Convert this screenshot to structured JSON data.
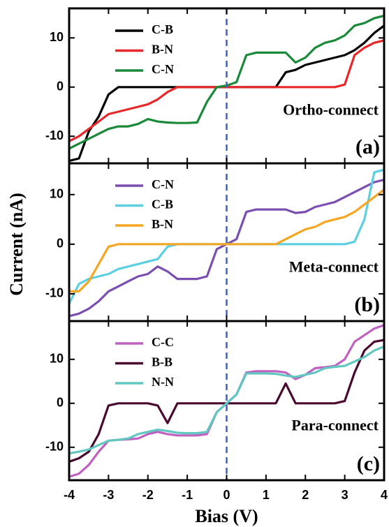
{
  "chart_data": [
    {
      "type": "line",
      "annotation": "Ortho-connect",
      "panel_label": "(a)",
      "legend": "upper left",
      "vline": 0,
      "xlim": [
        -4,
        4
      ],
      "xticks": [
        -4,
        -3,
        -2,
        -1,
        0,
        1,
        2,
        3,
        4
      ],
      "ylim": [
        -15.5,
        16
      ],
      "yticks": [
        -10,
        0,
        10
      ],
      "x": [
        -4,
        -3.75,
        -3.5,
        -3.25,
        -3,
        -2.75,
        -2.5,
        -2.25,
        -2,
        -1.75,
        -1.5,
        -1.25,
        -1,
        -0.75,
        -0.5,
        -0.25,
        0,
        0.25,
        0.5,
        0.75,
        1,
        1.25,
        1.5,
        1.75,
        2,
        2.25,
        2.5,
        2.75,
        3,
        3.25,
        3.5,
        3.75,
        4
      ],
      "series": [
        {
          "name": "C-B",
          "color": "#000000",
          "values": [
            -15,
            -14.5,
            -9,
            -6,
            -1.5,
            0,
            0,
            0,
            0,
            0,
            0,
            0,
            0,
            0,
            0,
            0,
            0,
            0,
            0,
            0,
            0,
            0,
            3,
            3.5,
            4.5,
            5,
            5.5,
            6,
            6.5,
            7.5,
            9,
            11,
            12.5
          ]
        },
        {
          "name": "B-N",
          "color": "#e8272a",
          "values": [
            -11,
            -10,
            -8.5,
            -7,
            -5.5,
            -5,
            -4.5,
            -4,
            -3.5,
            -2.5,
            -1,
            0,
            0,
            0,
            0,
            0,
            0,
            0,
            0,
            0,
            0,
            0,
            0,
            0,
            0,
            0,
            0,
            0,
            0.5,
            6.5,
            8,
            9,
            9.5
          ]
        },
        {
          "name": "C-N",
          "color": "#1a8a3a",
          "values": [
            -12.5,
            -11.5,
            -10.5,
            -9.5,
            -8.5,
            -8,
            -8,
            -7.5,
            -6.5,
            -7,
            -7.2,
            -7.3,
            -7.3,
            -7.2,
            -3,
            0,
            0.3,
            1,
            6.5,
            7,
            7,
            7,
            7,
            5,
            6,
            8,
            9,
            9.5,
            10.5,
            12.5,
            13,
            14,
            14.5
          ]
        }
      ]
    },
    {
      "type": "line",
      "annotation": "Meta-connect",
      "panel_label": "(b)",
      "legend": "upper left",
      "vline": 0,
      "ylabel": "Current (nA)",
      "xlim": [
        -4,
        4
      ],
      "xticks": [
        -4,
        -3,
        -2,
        -1,
        0,
        1,
        2,
        3,
        4
      ],
      "ylim": [
        -15.5,
        16.3
      ],
      "yticks": [
        -10,
        0,
        10
      ],
      "x": [
        -4,
        -3.75,
        -3.5,
        -3.25,
        -3,
        -2.75,
        -2.5,
        -2.25,
        -2,
        -1.75,
        -1.5,
        -1.25,
        -1,
        -0.75,
        -0.5,
        -0.25,
        0,
        0.25,
        0.5,
        0.75,
        1,
        1.25,
        1.5,
        1.75,
        2,
        2.25,
        2.5,
        2.75,
        3,
        3.25,
        3.5,
        3.75,
        4
      ],
      "series": [
        {
          "name": "C-N",
          "color": "#7a4fb0",
          "values": [
            -14.5,
            -14,
            -13,
            -11.5,
            -9.5,
            -8.5,
            -7.5,
            -6.5,
            -6,
            -4.5,
            -5.5,
            -7,
            -7,
            -7,
            -6.5,
            -1,
            0,
            1,
            6.5,
            7,
            7,
            7,
            7,
            6.3,
            6.5,
            7.5,
            8,
            8.5,
            9.5,
            10.5,
            11.5,
            12.5,
            13
          ]
        },
        {
          "name": "C-B",
          "color": "#5ccfe0",
          "values": [
            -12,
            -8,
            -7,
            -6.5,
            -6,
            -5,
            -4.5,
            -4,
            -3.5,
            -3,
            -0.5,
            0,
            0,
            0,
            0,
            0,
            0,
            0,
            0,
            0,
            0,
            0,
            0,
            0,
            0,
            0,
            0,
            0,
            0,
            0.5,
            5,
            14.5,
            15
          ]
        },
        {
          "name": "B-N",
          "color": "#f5a623",
          "values": [
            -9.5,
            -9.5,
            -7.5,
            -4,
            -0.5,
            0,
            0,
            0,
            0,
            0,
            0,
            0,
            0,
            0,
            0,
            0,
            0,
            0,
            0,
            0,
            0,
            0,
            1,
            2,
            3,
            3.5,
            4.5,
            5,
            5.5,
            6.5,
            8,
            9.5,
            11
          ]
        }
      ]
    },
    {
      "type": "line",
      "annotation": "Para-connect",
      "panel_label": "(c)",
      "legend": "upper left",
      "vline": 0,
      "xlabel": "Bias (V)",
      "xlim": [
        -4,
        4
      ],
      "xticks": [
        -4,
        -3,
        -2,
        -1,
        0,
        1,
        2,
        3,
        4
      ],
      "ylim": [
        -17.5,
        18.7
      ],
      "yticks": [
        -10,
        0,
        10
      ],
      "x": [
        -4,
        -3.75,
        -3.5,
        -3.25,
        -3,
        -2.75,
        -2.5,
        -2.25,
        -2,
        -1.75,
        -1.5,
        -1.25,
        -1,
        -0.75,
        -0.5,
        -0.25,
        0,
        0.25,
        0.5,
        0.75,
        1,
        1.25,
        1.5,
        1.75,
        2,
        2.25,
        2.5,
        2.75,
        3,
        3.25,
        3.5,
        3.75,
        4
      ],
      "series": [
        {
          "name": "C-C",
          "color": "#c060c0",
          "values": [
            -16.7,
            -16,
            -14,
            -11,
            -8.5,
            -8.3,
            -8.2,
            -8,
            -7,
            -6.5,
            -7,
            -7.3,
            -7.3,
            -7.3,
            -7,
            -2,
            0,
            2,
            7,
            7.3,
            7.3,
            7.3,
            7,
            5.5,
            6.5,
            8,
            8.2,
            8.5,
            10,
            14,
            15.5,
            17,
            17.8
          ]
        },
        {
          "name": "B-B",
          "color": "#4a0a30",
          "values": [
            -13.3,
            -12.5,
            -11,
            -7,
            -0.5,
            0,
            0,
            0,
            0,
            -0.5,
            -4.5,
            0,
            0,
            0,
            0,
            0,
            0,
            0,
            0,
            0,
            0,
            0,
            4.5,
            0,
            0,
            0,
            0,
            0,
            0.5,
            7,
            12,
            14,
            14.4
          ]
        },
        {
          "name": "N-N",
          "color": "#60c8c0",
          "values": [
            -11.4,
            -11,
            -10.5,
            -9.5,
            -8.5,
            -8.3,
            -8,
            -7,
            -6.5,
            -6,
            -6.3,
            -6.7,
            -6.8,
            -6.8,
            -6.5,
            -2,
            0,
            2,
            6.8,
            6.8,
            6.8,
            6.7,
            6.3,
            6,
            6.5,
            7,
            8,
            8.3,
            8.5,
            9.5,
            10.5,
            12,
            12.9
          ]
        }
      ]
    }
  ]
}
